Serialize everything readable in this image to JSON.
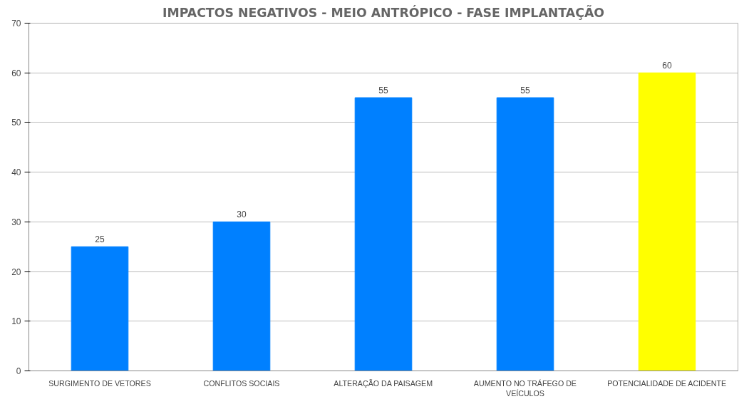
{
  "chart_data": {
    "type": "bar",
    "title": "IMPACTOS NEGATIVOS - MEIO ANTRÓPICO - FASE IMPLANTAÇÃO",
    "categories": [
      "SURGIMENTO DE VETORES",
      "CONFLITOS SOCIAIS",
      "ALTERAÇÃO DA PAISAGEM",
      "AUMENTO NO TRÁFEGO DE VEÍCULOS",
      "POTENCIALIDADE DE ACIDENTE"
    ],
    "values": [
      25,
      30,
      55,
      55,
      60
    ],
    "colors": [
      "#0080ff",
      "#0080ff",
      "#0080ff",
      "#0080ff",
      "#ffff00"
    ],
    "ylim": [
      0,
      70
    ],
    "yticks": [
      0,
      10,
      20,
      30,
      40,
      50,
      60,
      70
    ],
    "grid": "y",
    "data_labels": true
  }
}
